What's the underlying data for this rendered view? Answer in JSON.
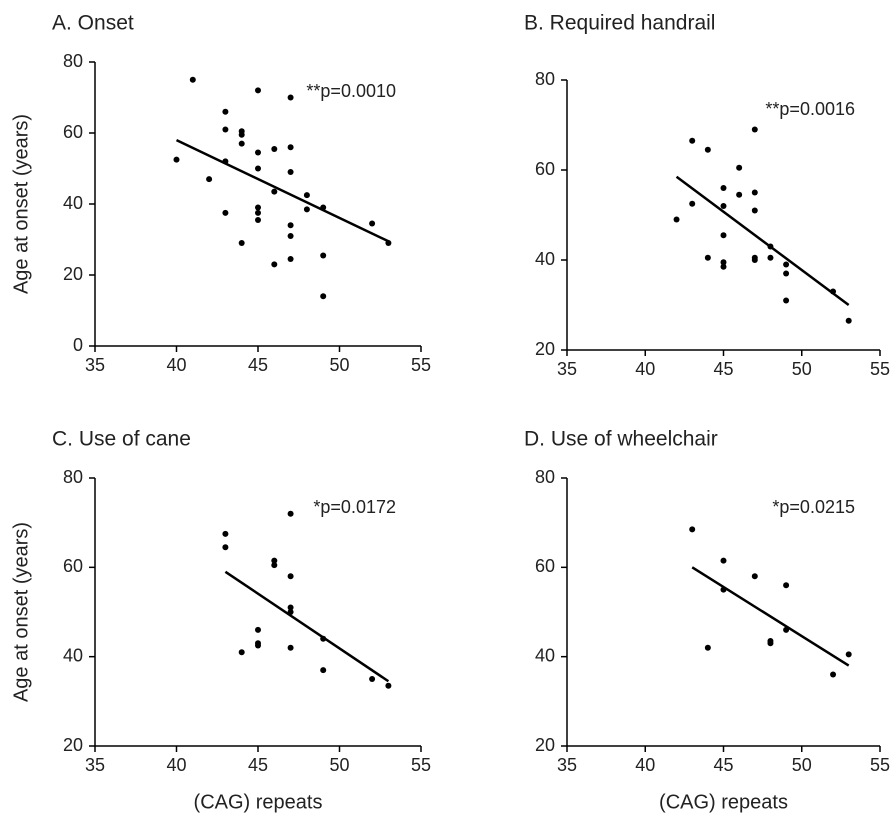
{
  "chart_data": [
    {
      "type": "scatter",
      "title": "A. Onset",
      "ylabel": "Age at onset (years)",
      "annotation": "**p=0.0010",
      "color": "#000000",
      "x": [
        40,
        41,
        42,
        43,
        43,
        43,
        43,
        44,
        44,
        44,
        44,
        45,
        45,
        45,
        45,
        45,
        45,
        46,
        46,
        46,
        47,
        47,
        47,
        47,
        47,
        47,
        48,
        48,
        49,
        49,
        49,
        52,
        53
      ],
      "y": [
        52.5,
        75,
        47,
        66,
        61,
        52,
        37.5,
        60.5,
        59.5,
        57,
        29,
        72,
        54.5,
        50,
        39,
        37.5,
        35.5,
        55.5,
        43.5,
        23,
        70,
        56,
        49,
        34,
        31,
        24.5,
        42.5,
        38.5,
        39,
        25.5,
        14,
        34.5,
        29
      ],
      "fit": {
        "x": [
          40,
          53
        ],
        "y": [
          58,
          29.5
        ]
      },
      "xlim": [
        35,
        55
      ],
      "xticks": [
        35,
        40,
        45,
        50,
        55
      ],
      "ylim": [
        0,
        80
      ],
      "yticks": [
        0,
        20,
        40,
        60,
        80
      ]
    },
    {
      "type": "scatter",
      "title": "B. Required handrail",
      "annotation": "**p=0.0016",
      "color": "#000000",
      "x": [
        42,
        43,
        43,
        44,
        44,
        45,
        45,
        45,
        45,
        45,
        46,
        46,
        47,
        47,
        47,
        47,
        47,
        48,
        48,
        49,
        49,
        49,
        52,
        53
      ],
      "y": [
        49,
        66.5,
        52.5,
        64.5,
        40.5,
        56,
        52,
        45.5,
        39.5,
        38.5,
        60.5,
        54.5,
        69,
        55,
        51,
        40.5,
        40,
        43,
        40.5,
        39,
        37,
        31,
        33,
        26.5
      ],
      "fit": {
        "x": [
          42,
          53
        ],
        "y": [
          58.5,
          30
        ]
      },
      "xlim": [
        35,
        55
      ],
      "xticks": [
        35,
        40,
        45,
        50,
        55
      ],
      "ylim": [
        20,
        80
      ],
      "yticks": [
        20,
        40,
        60,
        80
      ]
    },
    {
      "type": "scatter",
      "title": "C. Use of cane",
      "ylabel": "Age at onset (years)",
      "xlabel": "(CAG) repeats",
      "annotation": "*p=0.0172",
      "color": "#000000",
      "x": [
        43,
        43,
        44,
        45,
        45,
        45,
        46,
        46,
        47,
        47,
        47,
        47,
        47,
        49,
        49,
        52,
        53
      ],
      "y": [
        67.5,
        64.5,
        41,
        46,
        43,
        42.5,
        61.5,
        60.5,
        72,
        58,
        51,
        50,
        42,
        44,
        37,
        35,
        33.5
      ],
      "fit": {
        "x": [
          43,
          53
        ],
        "y": [
          59,
          34.5
        ]
      },
      "xlim": [
        35,
        55
      ],
      "xticks": [
        35,
        40,
        45,
        50,
        55
      ],
      "ylim": [
        20,
        80
      ],
      "yticks": [
        20,
        40,
        60,
        80
      ]
    },
    {
      "type": "scatter",
      "title": "D. Use of wheelchair",
      "xlabel": "(CAG) repeats",
      "annotation": "*p=0.0215",
      "color": "#000000",
      "x": [
        43,
        44,
        45,
        45,
        47,
        48,
        48,
        49,
        49,
        52,
        53
      ],
      "y": [
        68.5,
        42,
        61.5,
        55,
        58,
        43.5,
        43,
        56,
        46,
        36,
        40.5
      ],
      "fit": {
        "x": [
          43,
          53
        ],
        "y": [
          60,
          38
        ]
      },
      "xlim": [
        35,
        55
      ],
      "xticks": [
        35,
        40,
        45,
        50,
        55
      ],
      "ylim": [
        20,
        80
      ],
      "yticks": [
        20,
        40,
        60,
        80
      ]
    }
  ]
}
